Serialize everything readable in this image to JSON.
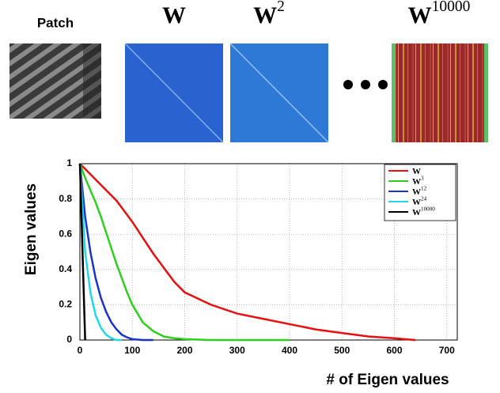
{
  "panels": [
    {
      "label": "Patch"
    },
    {
      "label": "W"
    },
    {
      "label": "W",
      "exponent": "2"
    },
    {
      "label": "W",
      "exponent": "10000"
    }
  ],
  "chart_data": {
    "type": "line",
    "x_label": "# of Eigen values",
    "y_label": "Eigen values",
    "x": [
      0,
      10,
      20,
      30,
      40,
      50,
      60,
      70,
      80,
      90,
      100,
      120,
      140,
      160,
      180,
      200,
      250,
      300,
      350,
      400,
      450,
      500,
      550,
      600,
      640
    ],
    "series": [
      {
        "name": "W",
        "color": "#e8100f",
        "values": [
          1,
          0.97,
          0.94,
          0.91,
          0.88,
          0.85,
          0.82,
          0.79,
          0.75,
          0.71,
          0.67,
          0.58,
          0.49,
          0.41,
          0.33,
          0.27,
          0.2,
          0.15,
          0.12,
          0.09,
          0.06,
          0.04,
          0.02,
          0.01,
          0
        ]
      },
      {
        "name": "W",
        "exponent": "3",
        "color": "#2ed01e",
        "values": [
          1,
          0.92,
          0.85,
          0.78,
          0.7,
          0.61,
          0.52,
          0.43,
          0.35,
          0.27,
          0.2,
          0.1,
          0.05,
          0.02,
          0.01,
          0.005,
          0,
          0,
          0,
          0,
          null,
          null,
          null,
          null,
          null
        ]
      },
      {
        "name": "W",
        "exponent": "12",
        "color": "#1a33c8",
        "values": [
          1,
          0.7,
          0.5,
          0.35,
          0.24,
          0.16,
          0.1,
          0.06,
          0.03,
          0.015,
          0.005,
          0,
          0,
          null,
          null,
          null,
          null,
          null,
          null,
          null,
          null,
          null,
          null,
          null,
          null
        ]
      },
      {
        "name": "W",
        "exponent": "24",
        "color": "#22d8e8",
        "values": [
          1,
          0.5,
          0.27,
          0.14,
          0.07,
          0.03,
          0.01,
          0,
          0,
          null,
          null,
          null,
          null,
          null,
          null,
          null,
          null,
          null,
          null,
          null,
          null,
          null,
          null,
          null,
          null
        ]
      },
      {
        "name": "W",
        "exponent": "10000",
        "color": "#000000",
        "values": [
          1,
          0,
          null,
          null,
          null,
          null,
          null,
          null,
          null,
          null,
          null,
          null,
          null,
          null,
          null,
          null,
          null,
          null,
          null,
          null,
          null,
          null,
          null,
          null,
          null
        ]
      }
    ],
    "xlim": [
      0,
      720
    ],
    "ylim": [
      0,
      1
    ],
    "xticks": [
      0,
      100,
      200,
      300,
      400,
      500,
      600,
      700
    ],
    "yticks": [
      0,
      0.2,
      0.4,
      0.6,
      0.8,
      1
    ],
    "grid": true,
    "legend": "upper right"
  }
}
